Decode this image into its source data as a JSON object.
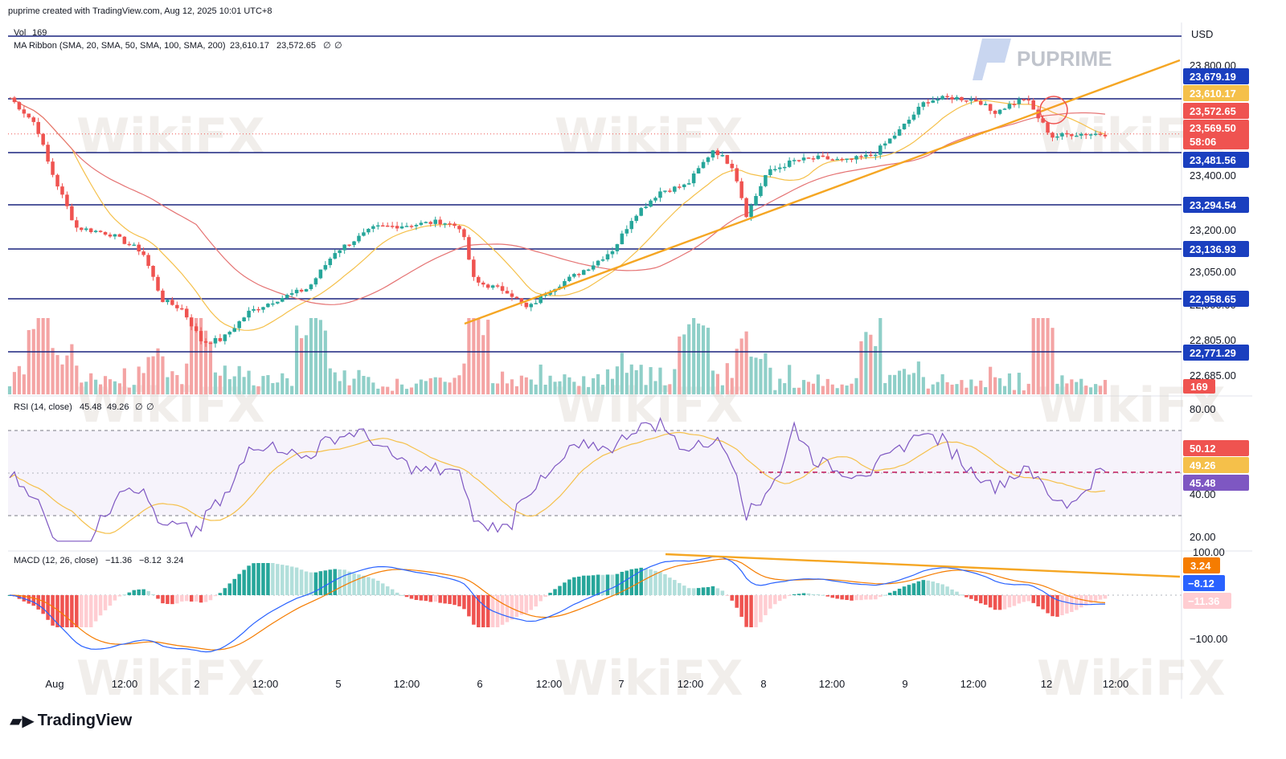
{
  "header": {
    "created_text": "puprime created with TradingView.com, Aug 12, 2025 10:01 UTC+8"
  },
  "brand": {
    "name": "PUPRIME",
    "watermark": "WikiFX",
    "platform": "TradingView"
  },
  "price_axis": {
    "currency": "USD",
    "ticks": [
      "23,800.00",
      "23,400.00",
      "23,200.00",
      "23,050.00",
      "22,900.00",
      "22,805.00",
      "22,685.00"
    ]
  },
  "rsi_axis": {
    "ticks": [
      "80.00",
      "40.00",
      "20.00"
    ]
  },
  "macd_axis": {
    "ticks": [
      "100.00",
      "−100.00"
    ]
  },
  "time_axis": {
    "labels": [
      "Aug",
      "12:00",
      "2",
      "12:00",
      "5",
      "12:00",
      "6",
      "12:00",
      "7",
      "12:00",
      "8",
      "12:00",
      "9",
      "12:00",
      "12",
      "12:00"
    ]
  },
  "legends": {
    "vol": {
      "label": "Vol",
      "value": "169"
    },
    "ma": {
      "label": "MA Ribbon (SMA, 20, SMA, 50, SMA, 100, SMA, 200)",
      "v1": "23,610.17",
      "v2": "23,572.65",
      "v3": "∅",
      "v4": "∅"
    },
    "rsi": {
      "label": "RSI (14, close)",
      "v1": "45.48",
      "v2": "49.26",
      "v3": "∅",
      "v4": "∅"
    },
    "macd": {
      "label": "MACD (12, 26, close)",
      "v1": "−11.36",
      "v2": "−8.12",
      "v3": "3.24"
    }
  },
  "levels": [
    {
      "price": "23,679.19"
    },
    {
      "price": "23,481.56"
    },
    {
      "price": "23,294.54"
    },
    {
      "price": "23,136.93"
    },
    {
      "price": "22,958.65"
    },
    {
      "price": "22,771.29"
    }
  ],
  "badges": {
    "ma20": "23,610.17",
    "ma50": "23,572.65",
    "last": "23,569.50",
    "countdown": "58:06",
    "volume": "169",
    "rsi": "50.12",
    "rsi_ma": "49.26",
    "rsi_alt": "45.48",
    "macd_hist": "3.24",
    "macd_signal": "−8.12",
    "macd_line": "−11.36"
  },
  "colors": {
    "up": "#26a69a",
    "down": "#ef5350",
    "level": "#1a237e",
    "trend": "#f5a623",
    "ma_fast": "#f5c04a",
    "ma_slow": "#e57373",
    "rsi": "#7e57c2"
  },
  "chart_data": {
    "type": "candlestick",
    "title": "",
    "xlabel": "",
    "ylabel": "",
    "ylim": [
      22600,
      23880
    ],
    "x": [
      "Aug 1",
      "Aug 2",
      "Aug 5",
      "Aug 6",
      "Aug 7",
      "Aug 8",
      "Aug 9",
      "Aug 12"
    ],
    "close": [
      23680,
      23020,
      23250,
      23220,
      23430,
      23400,
      23540,
      23569.5
    ],
    "series": [
      {
        "name": "MA Ribbon SMA 20",
        "last": 23610.17
      },
      {
        "name": "MA Ribbon SMA 50",
        "last": 23572.65
      },
      {
        "name": "RSI",
        "last": 45.48
      },
      {
        "name": "RSI MA",
        "last": 49.26
      },
      {
        "name": "MACD",
        "last": -11.36
      },
      {
        "name": "Signal",
        "last": -8.12
      },
      {
        "name": "Histogram",
        "last": 3.24
      }
    ],
    "horizontal_levels": [
      23679.19,
      23481.56,
      23294.54,
      23136.93,
      22958.65,
      22771.29
    ],
    "last_volume": 169
  }
}
